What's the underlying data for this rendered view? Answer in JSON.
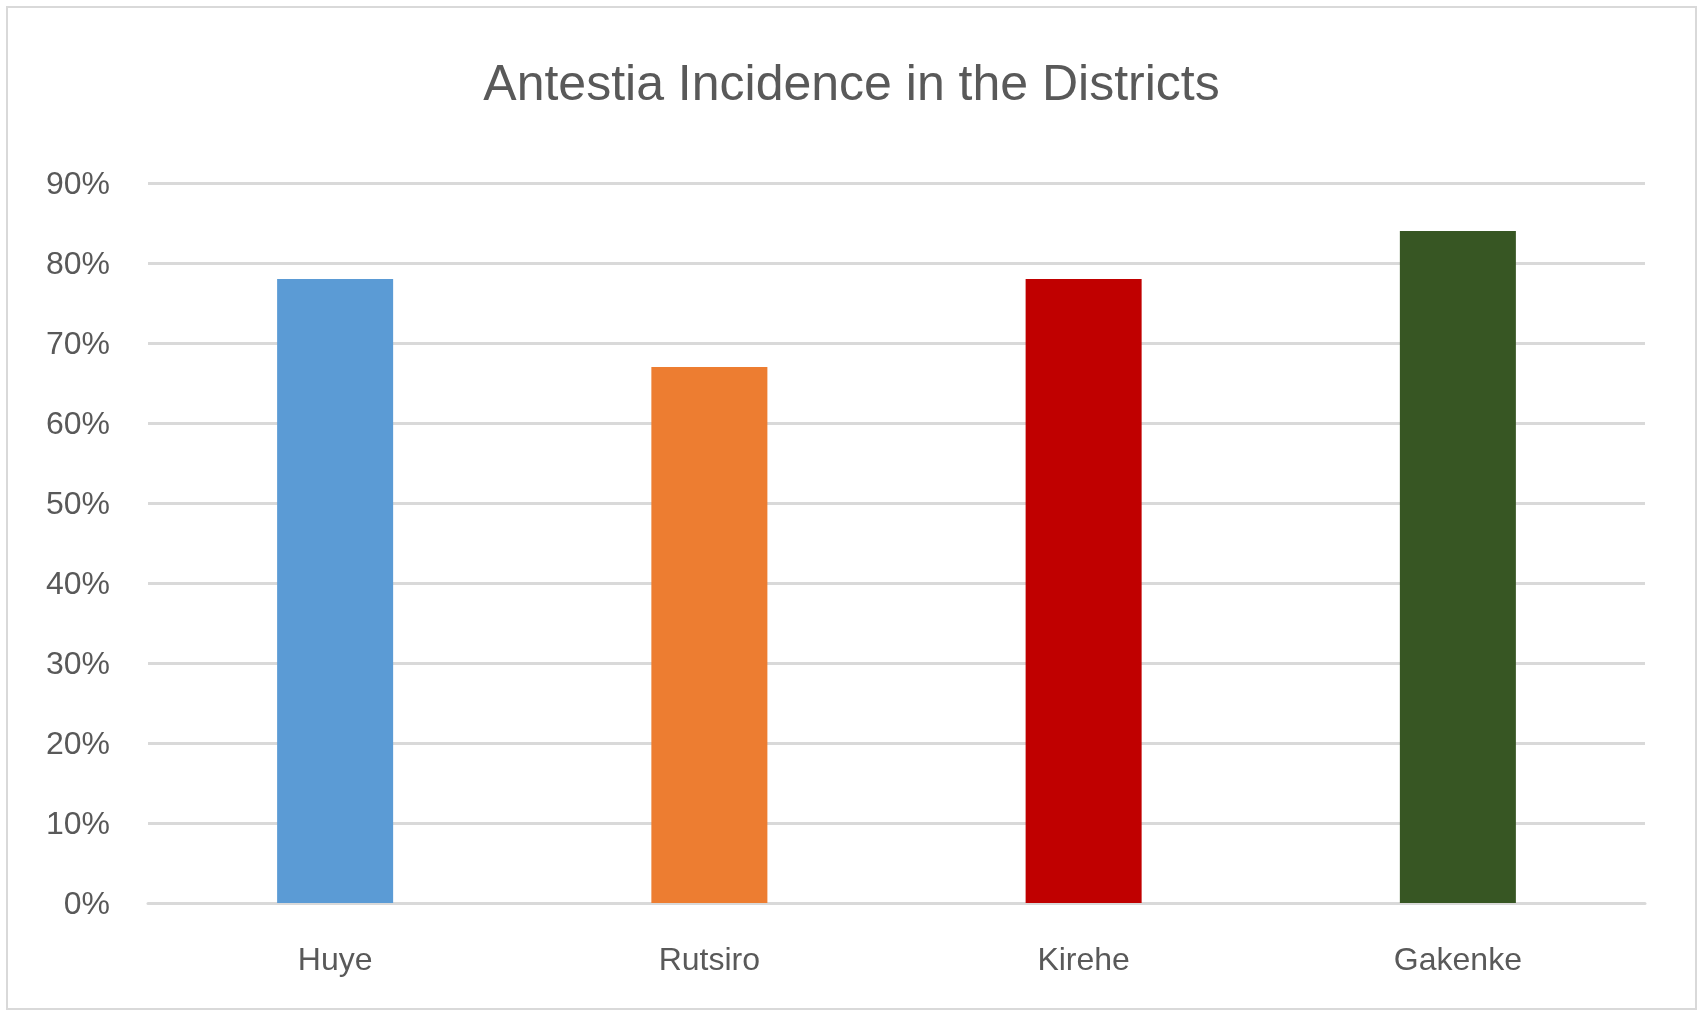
{
  "chart_data": {
    "type": "bar",
    "title": "Antestia Incidence in the Districts",
    "categories": [
      "Huye",
      "Rutsiro",
      "Kirehe",
      "Gakenke"
    ],
    "values": [
      78,
      67,
      78,
      84
    ],
    "colors": [
      "#5b9bd5",
      "#ed7d31",
      "#c00000",
      "#375623"
    ],
    "ylim": [
      0,
      90
    ],
    "yticks": [
      {
        "value": 0,
        "label": "0%"
      },
      {
        "value": 10,
        "label": "10%"
      },
      {
        "value": 20,
        "label": "20%"
      },
      {
        "value": 30,
        "label": "30%"
      },
      {
        "value": 40,
        "label": "40%"
      },
      {
        "value": 50,
        "label": "50%"
      },
      {
        "value": 60,
        "label": "60%"
      },
      {
        "value": 70,
        "label": "70%"
      },
      {
        "value": 80,
        "label": "80%"
      },
      {
        "value": 90,
        "label": "90%"
      }
    ],
    "grid": "y"
  }
}
